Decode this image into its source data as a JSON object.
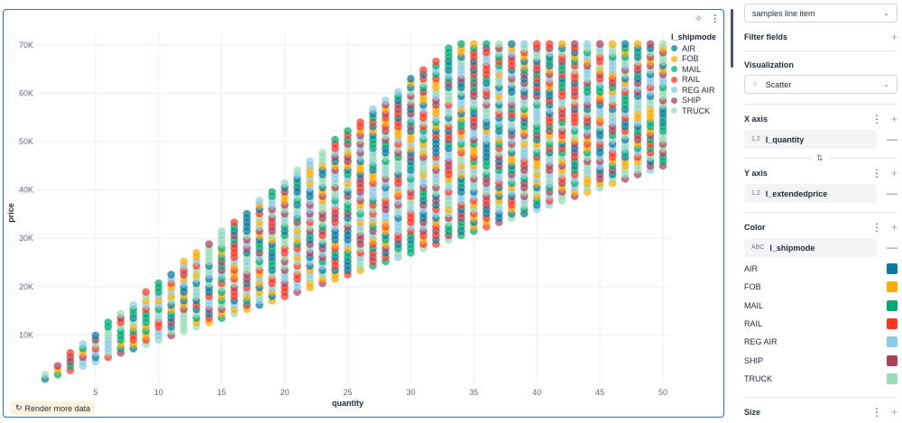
{
  "chart_data": {
    "type": "scatter",
    "xlabel": "quantity",
    "ylabel": "price",
    "xlim": [
      0,
      51
    ],
    "ylim": [
      0,
      72000
    ],
    "x_ticks": [
      5,
      10,
      15,
      20,
      25,
      30,
      35,
      40,
      45,
      50
    ],
    "y_ticks": [
      10000,
      20000,
      30000,
      40000,
      50000,
      60000,
      70000
    ],
    "y_tick_labels": [
      "10K",
      "20K",
      "30K",
      "40K",
      "50K",
      "60K",
      "70K"
    ],
    "grid": true,
    "legend": {
      "title": "l_shipmode",
      "placement": "top-right"
    },
    "series": [
      {
        "name": "AIR",
        "color": "#077a9d"
      },
      {
        "name": "FOB",
        "color": "#ffab00"
      },
      {
        "name": "MAIL",
        "color": "#00a972"
      },
      {
        "name": "RAIL",
        "color": "#ff3621"
      },
      {
        "name": "REG AIR",
        "color": "#8bcae7"
      },
      {
        "name": "SHIP",
        "color": "#ab4057"
      },
      {
        "name": "TRUCK",
        "color": "#99ddb4"
      }
    ],
    "price_range_by_quantity": [
      [
        1,
        900,
        2100
      ],
      [
        2,
        1800,
        4200
      ],
      [
        3,
        2700,
        6300
      ],
      [
        4,
        3600,
        8400
      ],
      [
        5,
        4500,
        10500
      ],
      [
        6,
        5400,
        12600
      ],
      [
        7,
        6300,
        14700
      ],
      [
        8,
        7200,
        16800
      ],
      [
        9,
        8100,
        18900
      ],
      [
        10,
        9000,
        21000
      ],
      [
        11,
        9900,
        23100
      ],
      [
        12,
        10800,
        25200
      ],
      [
        13,
        11700,
        27300
      ],
      [
        14,
        12600,
        29400
      ],
      [
        15,
        13500,
        31500
      ],
      [
        16,
        14400,
        33600
      ],
      [
        17,
        15300,
        35700
      ],
      [
        18,
        16200,
        37800
      ],
      [
        19,
        17100,
        39900
      ],
      [
        20,
        18000,
        42000
      ],
      [
        21,
        18900,
        44100
      ],
      [
        22,
        19800,
        46200
      ],
      [
        23,
        20700,
        48300
      ],
      [
        24,
        21600,
        50400
      ],
      [
        25,
        22500,
        52500
      ],
      [
        26,
        23400,
        54600
      ],
      [
        27,
        24300,
        56700
      ],
      [
        28,
        25200,
        58800
      ],
      [
        29,
        26100,
        60900
      ],
      [
        30,
        27000,
        63000
      ],
      [
        31,
        27900,
        65100
      ],
      [
        32,
        28800,
        67200
      ],
      [
        33,
        29700,
        69300
      ],
      [
        34,
        30600,
        71000
      ],
      [
        35,
        31500,
        71000
      ],
      [
        36,
        32400,
        71000
      ],
      [
        37,
        33300,
        71000
      ],
      [
        38,
        34200,
        71000
      ],
      [
        39,
        35100,
        71000
      ],
      [
        40,
        36000,
        71000
      ],
      [
        41,
        36900,
        71000
      ],
      [
        42,
        37800,
        71000
      ],
      [
        43,
        38700,
        71000
      ],
      [
        44,
        39600,
        71000
      ],
      [
        45,
        40500,
        71000
      ],
      [
        46,
        41400,
        71000
      ],
      [
        47,
        42300,
        71000
      ],
      [
        48,
        43200,
        71000
      ],
      [
        49,
        44100,
        71000
      ],
      [
        50,
        45000,
        71000
      ]
    ]
  },
  "chart": {
    "render_more_label": "Render more data"
  },
  "sidebar": {
    "dataset": "samples line item",
    "filter_fields": "Filter fields",
    "visualization": "Visualization",
    "viz_type": "Scatter",
    "x_axis": "X axis",
    "x_field": "l_quantity",
    "x_type": "1.2",
    "y_axis": "Y axis",
    "y_field": "l_extendedprice",
    "y_type": "1.2",
    "color": "Color",
    "color_field": "l_shipmode",
    "color_type": "ABC",
    "colors": [
      {
        "label": "AIR",
        "color": "#077a9d"
      },
      {
        "label": "FOB",
        "color": "#ffab00"
      },
      {
        "label": "MAIL",
        "color": "#00a972"
      },
      {
        "label": "RAIL",
        "color": "#ff3621"
      },
      {
        "label": "REG AIR",
        "color": "#8bcae7"
      },
      {
        "label": "SHIP",
        "color": "#ab4057"
      },
      {
        "label": "TRUCK",
        "color": "#99ddb4"
      }
    ],
    "size": "Size"
  }
}
